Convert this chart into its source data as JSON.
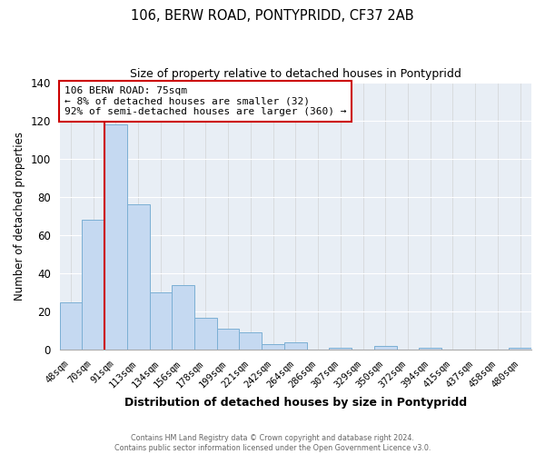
{
  "title": "106, BERW ROAD, PONTYPRIDD, CF37 2AB",
  "subtitle": "Size of property relative to detached houses in Pontypridd",
  "xlabel": "Distribution of detached houses by size in Pontypridd",
  "ylabel": "Number of detached properties",
  "bar_labels": [
    "48sqm",
    "70sqm",
    "91sqm",
    "113sqm",
    "134sqm",
    "156sqm",
    "178sqm",
    "199sqm",
    "221sqm",
    "242sqm",
    "264sqm",
    "286sqm",
    "307sqm",
    "329sqm",
    "350sqm",
    "372sqm",
    "394sqm",
    "415sqm",
    "437sqm",
    "458sqm",
    "480sqm"
  ],
  "bar_values": [
    25,
    68,
    118,
    76,
    30,
    34,
    17,
    11,
    9,
    3,
    4,
    0,
    1,
    0,
    2,
    0,
    1,
    0,
    0,
    0,
    1
  ],
  "bar_color": "#c5d9f1",
  "bar_edge_color": "#7bafd4",
  "ylim": [
    0,
    140
  ],
  "yticks": [
    0,
    20,
    40,
    60,
    80,
    100,
    120,
    140
  ],
  "property_line_color": "#cc0000",
  "annotation_title": "106 BERW ROAD: 75sqm",
  "annotation_line1": "← 8% of detached houses are smaller (32)",
  "annotation_line2": "92% of semi-detached houses are larger (360) →",
  "annotation_box_color": "#ffffff",
  "annotation_box_edge": "#cc0000",
  "bg_color": "#e8eef5",
  "footer_line1": "Contains HM Land Registry data © Crown copyright and database right 2024.",
  "footer_line2": "Contains public sector information licensed under the Open Government Licence v3.0."
}
